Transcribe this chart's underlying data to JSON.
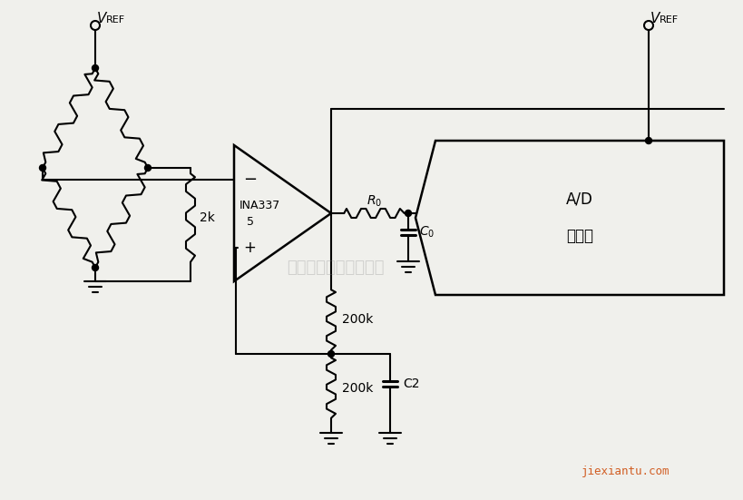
{
  "bg_color": "#f0f0ec",
  "line_color": "#000000",
  "watermark": "杭州将睿科技有限公司",
  "watermark_color": "#888888",
  "watermark2": "jiexiantu.com",
  "watermark2_color": "#cc4400",
  "label_ina": "INA337",
  "label_2k": "2k",
  "label_r0_main": "R",
  "label_r0_sub": "0",
  "label_c0_main": "C",
  "label_c0_sub": "0",
  "label_200k_top": "200k",
  "label_200k_bot": "200k",
  "label_c2": "C2",
  "label_ad_line1": "A/D",
  "label_ad_line2": "变换器",
  "label_pin5": "5",
  "label_minus": "−",
  "label_plus": "+"
}
